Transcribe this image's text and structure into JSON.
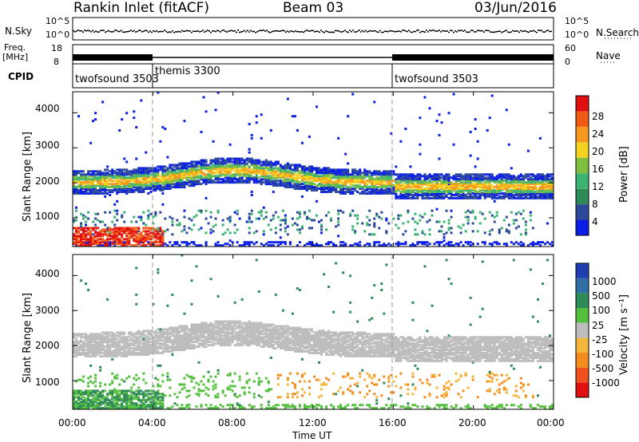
{
  "header": {
    "station": "Rankin Inlet (fitACF)",
    "beam": "Beam 03",
    "date": "03/Jun/2016"
  },
  "noise_panel": {
    "left_label": "N.Sky",
    "right_label": "N.Search",
    "left_ticks": [
      "10^5",
      "10^0"
    ],
    "right_ticks": [
      "10^5",
      "10^0"
    ]
  },
  "freq_panel": {
    "left_label_top": "Freq.",
    "left_label_bottom": "[MHz]",
    "left_ticks": [
      "18",
      "8"
    ],
    "right_label": "Nave",
    "right_ticks": [
      "60",
      "0"
    ]
  },
  "cpid_panel": {
    "label": "CPID",
    "segments": [
      {
        "name": "twofsound 3503",
        "start_hour": 0
      },
      {
        "name": "themis 3300",
        "start_hour": 4
      },
      {
        "name": "twofsound 3503",
        "start_hour": 16
      }
    ]
  },
  "power_panel": {
    "ylabel": "Slant Range [km]",
    "ytick_labels": [
      "1000",
      "2000",
      "3000",
      "4000"
    ],
    "colorbar_label": "Power [dB]",
    "colorbar_ticks": [
      "28",
      "24",
      "20",
      "16",
      "12",
      "8",
      "4"
    ],
    "colors": [
      "#0b1ee6",
      "#2d4a9a",
      "#2e8b57",
      "#3cb371",
      "#7fbf3f",
      "#f2d21e",
      "#f59a1e",
      "#f05a14",
      "#e01010"
    ]
  },
  "velocity_panel": {
    "ylabel": "Slant Range [km]",
    "ytick_labels": [
      "1000",
      "2000",
      "3000",
      "4000"
    ],
    "colorbar_label": "Velocity [m s⁻¹]",
    "colorbar_ticks": [
      "1000",
      "500",
      "100",
      "25",
      "-25",
      "-100",
      "-500",
      "-1000"
    ],
    "colors": [
      "#1f3fb0",
      "#2f6fa6",
      "#2e8b57",
      "#55bf40",
      "#bdbdbd",
      "#f3b53a",
      "#f28c1c",
      "#f0501e",
      "#e01010"
    ]
  },
  "xaxis": {
    "label": "Time UT",
    "tick_labels": [
      "00:00",
      "04:00",
      "08:00",
      "12:00",
      "16:00",
      "20:00",
      "00:00"
    ]
  },
  "chart_data": [
    {
      "type": "heatmap",
      "title": "Power [dB]",
      "xlabel": "Time UT",
      "ylabel": "Slant Range [km]",
      "xlim_hours": [
        0,
        24
      ],
      "ylim": [
        180,
        4600
      ],
      "colorbar_range": [
        0,
        30
      ],
      "features": [
        {
          "desc": "main echo band",
          "hours": [
            0,
            24
          ],
          "range_km": [
            1500,
            2700
          ],
          "power_db": [
            6,
            22
          ]
        },
        {
          "desc": "near-range strong echoes",
          "hours": [
            0,
            4
          ],
          "range_km": [
            200,
            700
          ],
          "power_db": [
            16,
            30
          ]
        },
        {
          "desc": "mid-range patches",
          "hours": [
            0,
            23
          ],
          "range_km": [
            500,
            1200
          ],
          "power_db": [
            4,
            14
          ]
        }
      ]
    },
    {
      "type": "heatmap",
      "title": "Velocity [m s⁻¹]",
      "xlabel": "Time UT",
      "ylabel": "Slant Range [km]",
      "xlim_hours": [
        0,
        24
      ],
      "ylim": [
        180,
        4600
      ],
      "colorbar_range": [
        -1000,
        1000
      ],
      "features": [
        {
          "desc": "main echo band near zero velocity",
          "hours": [
            0,
            24
          ],
          "range_km": [
            1500,
            2700
          ],
          "velocity": [
            -25,
            25
          ]
        },
        {
          "desc": "near-range positive velocities",
          "hours": [
            0,
            4
          ],
          "range_km": [
            200,
            900
          ],
          "velocity": [
            100,
            500
          ]
        },
        {
          "desc": "negative velocity patches",
          "hours": [
            10,
            23
          ],
          "range_km": [
            300,
            1200
          ],
          "velocity": [
            -500,
            -100
          ]
        }
      ]
    }
  ]
}
